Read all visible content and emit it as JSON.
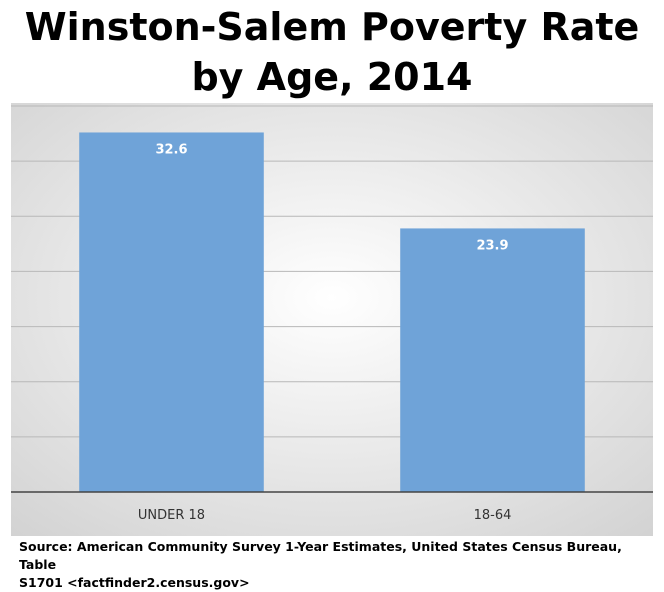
{
  "title_lines": [
    "Winston-Salem Poverty Rate",
    "by Age, 2014"
  ],
  "source_lines": [
    "Source: American Community Survey 1-Year Estimates, United States Census Bureau, Table",
    "S1701 <factfinder2.census.gov>"
  ],
  "colors": {
    "bar": "#6fa3d8",
    "bar_label": "#ffffff",
    "grid": "#b8b8b8",
    "axis": "#444444",
    "background_center": "#ffffff",
    "background_edge": "#d2d2d2",
    "tick_label": "#333333"
  },
  "chart_data": {
    "type": "bar",
    "categories": [
      "UNDER 18",
      "18-64"
    ],
    "values": [
      32.6,
      23.9
    ],
    "data_labels": [
      "32.6",
      "23.9"
    ],
    "title": "Winston-Salem Poverty Rate by Age, 2014",
    "xlabel": "",
    "ylabel": "",
    "ylim": [
      0,
      35
    ],
    "grid": true,
    "y_axis_labels_shown": false,
    "legend": "none"
  }
}
